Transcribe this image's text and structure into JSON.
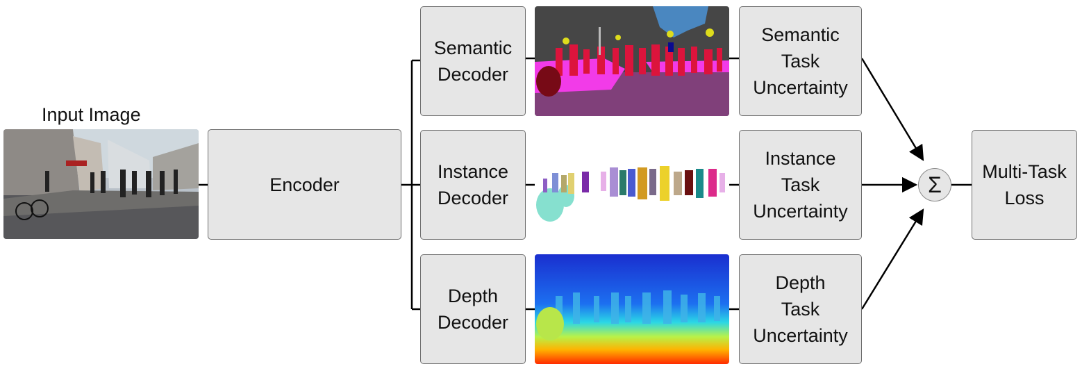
{
  "input_label": "Input Image",
  "encoder": [
    "Encoder"
  ],
  "decoders": [
    {
      "lines": [
        "Semantic",
        "Decoder"
      ]
    },
    {
      "lines": [
        "Instance",
        "Decoder"
      ]
    },
    {
      "lines": [
        "Depth",
        "Decoder"
      ]
    }
  ],
  "uncertainties": [
    {
      "lines": [
        "Semantic",
        "Task",
        "Uncertainty"
      ]
    },
    {
      "lines": [
        "Instance",
        "Task",
        "Uncertainty"
      ]
    },
    {
      "lines": [
        "Depth",
        "Task",
        "Uncertainty"
      ]
    }
  ],
  "sum_symbol": "Σ",
  "loss": [
    "Multi-Task",
    "Loss"
  ],
  "colors": {
    "box_fill": "#e6e6e6",
    "box_border": "#6e6e6e",
    "semantic_road": "#80407a",
    "semantic_sky": "#4a87c0",
    "semantic_person": "#dc143c",
    "semantic_sidewalk": "#f23be8",
    "instance_cyan": "#86e0cf",
    "depth_far": "#1a2fcf",
    "depth_near": "#ff2a00"
  }
}
